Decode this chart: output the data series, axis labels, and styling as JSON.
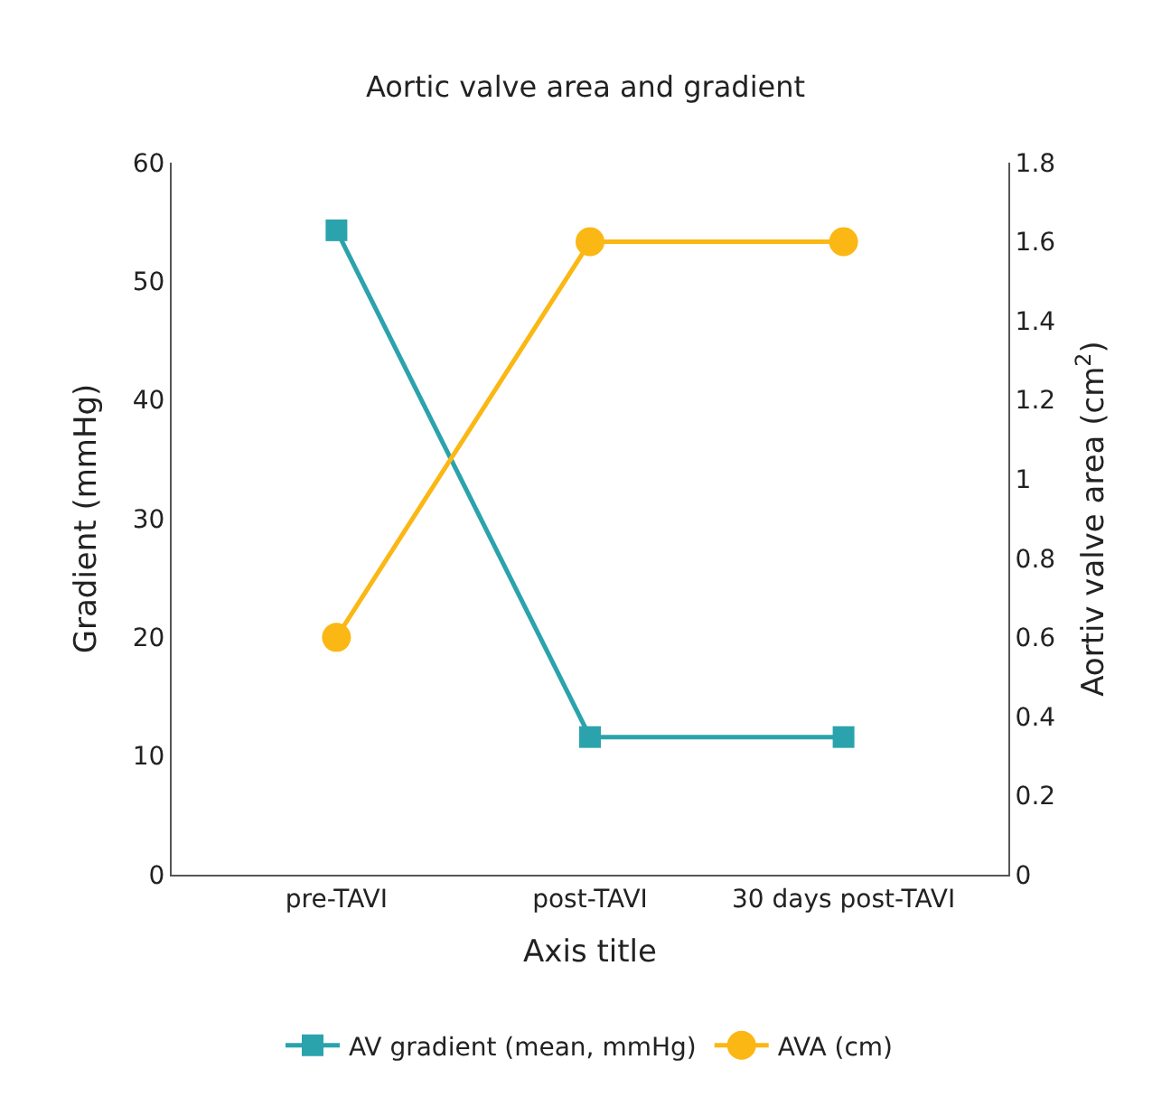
{
  "chart_data": {
    "type": "line",
    "title": "Aortic valve area and gradient",
    "xlabel": "Axis title",
    "ylabel": "Gradient (mmHg)",
    "y2label": "Aortiv valve area (cm$^{2}$)",
    "categories": [
      "pre-TAVI",
      "post-TAVI",
      "30 days post-TAVI"
    ],
    "series": [
      {
        "name": "AV gradient (mean, mmHg)",
        "color": "#2aa3ac",
        "values": [
          54.3,
          11.6,
          11.6
        ],
        "marker": "square"
      },
      {
        "name": "AVA (cm)",
        "color": "#fbb714",
        "values": [
          0.6,
          1.6,
          1.6
        ],
        "marker": "circle",
        "axis": "y2"
      }
    ],
    "ylim": [
      0,
      60
    ],
    "yticks": [
      0,
      10,
      20,
      30,
      40,
      50,
      60
    ],
    "y2lim": [
      0,
      1.8
    ],
    "y2ticks": [
      0,
      {
        "value": 0.2,
        "label": "0.2"
      },
      {
        "value": 0.4,
        "label": "0.4"
      },
      {
        "value": 0.6,
        "label": "0.6"
      },
      {
        "value": 0.8,
        "label": "0.8"
      },
      1,
      {
        "value": 1.2,
        "label": "1.2"
      },
      {
        "value": 1.4,
        "label": "1.4"
      },
      {
        "value": 1.6,
        "label": "1.6"
      },
      {
        "value": 1.8,
        "label": "1.8"
      }
    ],
    "legend": "bottom",
    "line_style": "solid"
  }
}
